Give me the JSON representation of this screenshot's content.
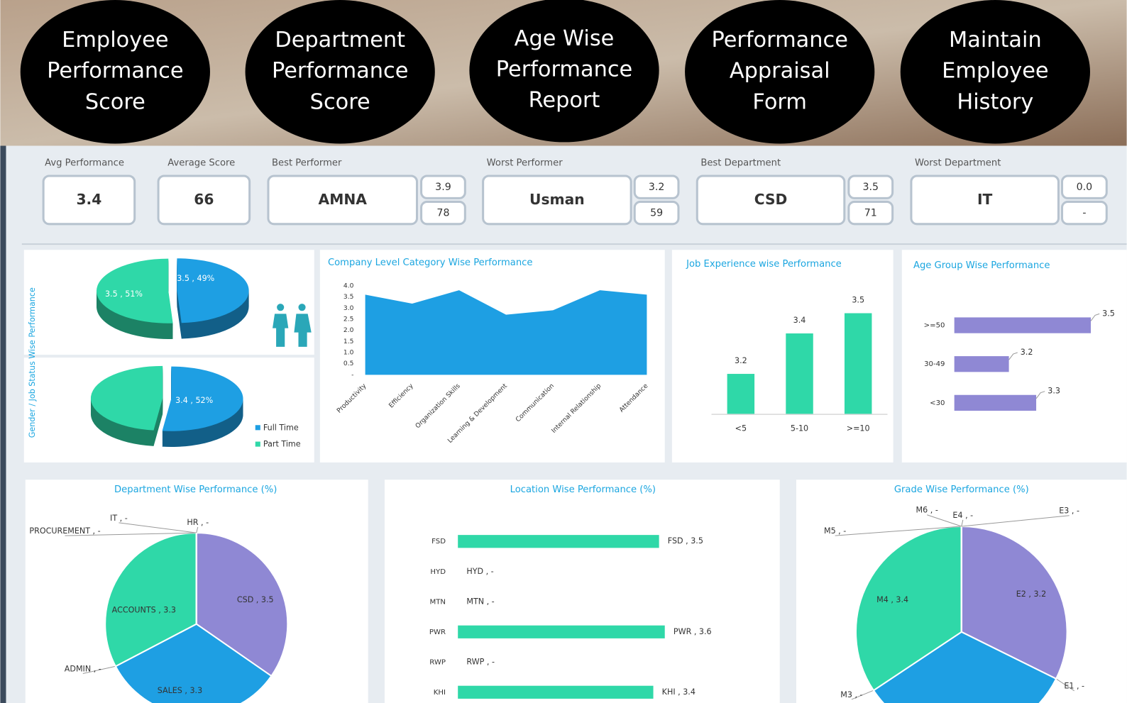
{
  "nav": [
    {
      "lines": [
        "Employee",
        "Performance",
        "Score"
      ]
    },
    {
      "lines": [
        "Department",
        "Performance",
        "Score"
      ]
    },
    {
      "lines": [
        "Age Wise",
        "Performance",
        "Report"
      ]
    },
    {
      "lines": [
        "Performance",
        "Appraisal",
        "Form"
      ]
    },
    {
      "lines": [
        "Maintain",
        "Employee",
        "History"
      ]
    }
  ],
  "kpis": [
    {
      "label": "Avg Performance",
      "value": "3.4"
    },
    {
      "label": "Average Score",
      "value": "66"
    },
    {
      "label": "Best Performer",
      "value": "AMNA",
      "rating": "3.9",
      "score": "78"
    },
    {
      "label": "Worst Performer",
      "value": "Usman",
      "rating": "3.2",
      "score": "59"
    },
    {
      "label": "Best Department",
      "value": "CSD",
      "rating": "3.5",
      "score": "71"
    },
    {
      "label": "Worst Department",
      "value": "IT",
      "rating": "0.0",
      "score": "-"
    }
  ],
  "chart_data": [
    {
      "type": "pie",
      "title": "Gender / Job Status Wise Performance",
      "3d": true,
      "categories": [
        null,
        null
      ],
      "values": [
        49,
        51
      ],
      "value_labels": [
        "3.5 , 49%",
        "3.5 , 51%"
      ],
      "colors": [
        "#1e9fe3",
        "#2fd8a8"
      ]
    },
    {
      "type": "pie",
      "3d": true,
      "legend": "right",
      "categories": [
        "Full Time",
        "Part Time"
      ],
      "values": [
        52,
        48
      ],
      "value_labels": [
        "3.4 , 52%",
        null
      ],
      "colors": [
        "#1e9fe3",
        "#2fd8a8"
      ]
    },
    {
      "type": "area",
      "title": "Company Level Category Wise Performance",
      "categories": [
        "Productivity",
        "Efficiency",
        "Organization Skills",
        "Learning & Development",
        "Communication",
        "Internal Relationship",
        "Attendance"
      ],
      "values": [
        3.6,
        3.2,
        3.8,
        2.7,
        2.9,
        3.8,
        3.6
      ],
      "color": "#1e9fe3",
      "ylim": [
        0,
        4
      ],
      "yticks": [
        {
          "value": 0,
          "label": "-"
        },
        0.5,
        {
          "value": 1,
          "label": "1.0"
        },
        1.5,
        {
          "value": 2,
          "label": "2.0"
        },
        2.5,
        {
          "value": 3,
          "label": "3.0"
        },
        3.5,
        {
          "value": 4,
          "label": "4.0"
        }
      ]
    },
    {
      "type": "bar",
      "title": "Job Experience wise Performance",
      "categories": [
        "<5",
        "5-10",
        ">=10"
      ],
      "values": [
        3.2,
        3.4,
        3.5
      ],
      "color": "#2fd8a8",
      "ylim": [
        3.0,
        3.6
      ]
    },
    {
      "type": "barh",
      "title": "Age Group Wise Performance",
      "categories": [
        ">=50",
        "30-49",
        "<30"
      ],
      "values": [
        3.5,
        3.2,
        3.3
      ],
      "color": "#8f88d4",
      "xlim": [
        3.0,
        3.6
      ]
    },
    {
      "type": "pie",
      "title": "Department Wise Performance (%)",
      "categories": [
        "CSD",
        "SALES",
        "ADMIN",
        "ACCOUNTS",
        "PROCUREMENT",
        "IT",
        "HR"
      ],
      "values": [
        3.5,
        3.3,
        0,
        3.3,
        0,
        0,
        0
      ],
      "value_labels": [
        "CSD , 3.5",
        "SALES , 3.3",
        "ADMIN , -",
        "ACCOUNTS , 3.3",
        "PROCUREMENT , -",
        "IT , -",
        "HR , -"
      ],
      "colors": [
        "#8f88d4",
        "#1e9fe3",
        null,
        "#2fd8a8",
        null,
        null,
        null
      ]
    },
    {
      "type": "barh",
      "title": "Location Wise Performance (%)",
      "categories": [
        "FSD",
        "HYD",
        "MTN",
        "PWR",
        "RWP",
        "KHI"
      ],
      "values": [
        3.5,
        0,
        0,
        3.6,
        0,
        3.4
      ],
      "value_labels": [
        "FSD , 3.5",
        "HYD , -",
        "MTN , -",
        "PWR , 3.6",
        "RWP , -",
        "KHI , 3.4"
      ],
      "color": "#2fd8a8",
      "xlim": [
        0,
        4
      ]
    },
    {
      "type": "pie",
      "title": "Grade Wise Performance (%)",
      "categories": [
        "E2",
        "E1",
        null,
        "M3",
        "M4",
        "M5",
        "M6",
        "E4",
        "E3"
      ],
      "values": [
        3.2,
        0,
        3.3,
        0,
        3.4,
        0,
        0,
        0,
        0
      ],
      "value_labels": [
        "E2 , 3.2",
        "E1 , -",
        null,
        "M3 , -",
        "M4 , 3.4",
        "M5 , -",
        "M6 , -",
        "E4 , -",
        "E3 , -"
      ],
      "colors": [
        "#8f88d4",
        null,
        "#1e9fe3",
        null,
        "#2fd8a8",
        null,
        null,
        null,
        null
      ]
    }
  ]
}
